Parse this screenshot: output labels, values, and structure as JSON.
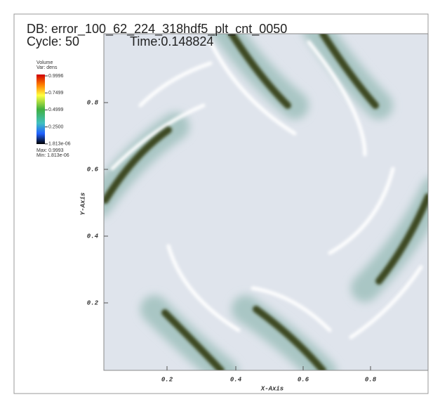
{
  "header": {
    "title": "DB: error_100_62_224_318hdf5_plt_cnt_0050",
    "cycle": "Cycle: 50",
    "time": "Time:0.148824"
  },
  "legend": {
    "name": "Volume",
    "variable": "Var: dens",
    "labels": [
      "0.9996",
      "0.7499",
      "0.4999",
      "0.2500",
      "1.813e-06"
    ],
    "max": "Max: 0.9993",
    "min": "Min: 1.813e-06"
  },
  "axes": {
    "x_title": "X-Axis",
    "y_title": "Y-Axis",
    "x_ticks": [
      "0.2",
      "0.4",
      "0.6",
      "0.8"
    ],
    "y_ticks": [
      "0.8",
      "0.6",
      "0.4",
      "0.2"
    ]
  }
}
